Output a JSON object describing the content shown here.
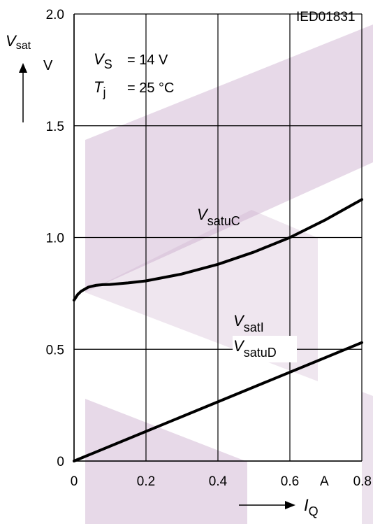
{
  "chart_data": {
    "type": "line",
    "figure_id": "IED01831",
    "y_axis": {
      "symbol": "V",
      "subscript": "sat",
      "unit": "V",
      "range": [
        0,
        2.0
      ],
      "ticks": [
        "0",
        "0.5",
        "1.0",
        "1.5",
        "2.0"
      ]
    },
    "x_axis": {
      "symbol": "I",
      "subscript": "Q",
      "unit": "A",
      "range": [
        0,
        0.8
      ],
      "ticks": [
        "0",
        "0.2",
        "0.4",
        "0.6",
        "0.8"
      ]
    },
    "conditions": [
      {
        "symbol": "V",
        "subscript": "S",
        "value": "= 14 V"
      },
      {
        "symbol": "T",
        "subscript": "j",
        "value": "= 25 °C"
      }
    ],
    "grid": true,
    "series": [
      {
        "name_symbol": "V",
        "name_subscript": "satuC",
        "x": [
          0.0,
          0.01,
          0.02,
          0.04,
          0.06,
          0.08,
          0.1,
          0.15,
          0.2,
          0.3,
          0.4,
          0.5,
          0.6,
          0.7,
          0.8
        ],
        "y": [
          0.72,
          0.745,
          0.76,
          0.778,
          0.786,
          0.789,
          0.79,
          0.797,
          0.806,
          0.837,
          0.88,
          0.935,
          1.0,
          1.08,
          1.17
        ]
      },
      {
        "name_symbol": "V",
        "name_subscript": "satI",
        "name2_symbol": "V",
        "name2_subscript": "satuD",
        "x": [
          0.0,
          0.8
        ],
        "y": [
          0.0,
          0.53
        ]
      }
    ]
  }
}
